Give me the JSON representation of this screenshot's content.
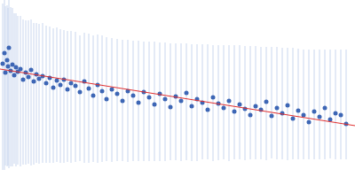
{
  "chart_data": {
    "type": "scatter",
    "xlim": [
      0,
      400
    ],
    "ylim": [
      0,
      200
    ],
    "tick_labels": false,
    "grid": false,
    "series": [
      {
        "type": "scatter",
        "color": "#3d66b5",
        "marker": "circle",
        "error_color": "#c9d6ee",
        "x": [
          3,
          5,
          6,
          8,
          9,
          10,
          12,
          14,
          16,
          18,
          20,
          23,
          26,
          29,
          32,
          35,
          38,
          41,
          44,
          48,
          52,
          56,
          60,
          64,
          68,
          72,
          76,
          80,
          85,
          90,
          95,
          100,
          105,
          110,
          115,
          120,
          126,
          132,
          138,
          144,
          150,
          156,
          162,
          168,
          174,
          180,
          186,
          192,
          198,
          204,
          210,
          216,
          222,
          228,
          234,
          240,
          246,
          252,
          258,
          264,
          270,
          276,
          282,
          288,
          294,
          300,
          306,
          312,
          318,
          324,
          330,
          336,
          342,
          348,
          354,
          360,
          366,
          372,
          378,
          384,
          390
        ],
        "values": [
          128,
          140,
          118,
          132,
          125,
          146,
          120,
          127,
          115,
          124,
          119,
          122,
          110,
          118,
          113,
          121,
          108,
          116,
          111,
          114,
          106,
          112,
          101,
          109,
          104,
          110,
          99,
          106,
          103,
          96,
          108,
          100,
          92,
          104,
          97,
          88,
          99,
          94,
          86,
          97,
          92,
          84,
          96,
          90,
          82,
          94,
          88,
          79,
          91,
          86,
          95,
          80,
          88,
          84,
          76,
          90,
          83,
          78,
          86,
          74,
          82,
          77,
          70,
          80,
          76,
          85,
          69,
          78,
          72,
          81,
          66,
          75,
          70,
          62,
          74,
          68,
          78,
          65,
          72,
          70,
          60
        ],
        "error_plus": [
          68,
          60,
          75,
          62,
          66,
          55,
          72,
          64,
          70,
          61,
          63,
          60,
          68,
          59,
          64,
          57,
          66,
          58,
          62,
          60,
          65,
          58,
          67,
          60,
          63,
          56,
          66,
          59,
          61,
          64,
          55,
          62,
          68,
          57,
          63,
          70,
          58,
          62,
          69,
          58,
          62,
          70,
          57,
          63,
          71,
          58,
          64,
          72,
          60,
          65,
          56,
          70,
          62,
          66,
          74,
          59,
          66,
          71,
          63,
          75,
          67,
          71,
          78,
          68,
          71,
          62,
          78,
          69,
          74,
          65,
          80,
          70,
          74,
          82,
          70,
          76,
          66,
          79,
          72,
          74,
          84
        ],
        "error_minus": [
          120,
          132,
          105,
          120,
          112,
          136,
          108,
          115,
          100,
          112,
          105,
          110,
          96,
          104,
          98,
          108,
          94,
          100,
          96,
          98,
          90,
          96,
          85,
          92,
          88,
          94,
          82,
          90,
          86,
          78,
          92,
          84,
          75,
          88,
          80,
          70,
          82,
          76,
          68,
          80,
          74,
          66,
          78,
          72,
          64,
          76,
          70,
          60,
          72,
          68,
          76,
          62,
          70,
          64,
          56,
          72,
          64,
          58,
          68,
          54,
          62,
          58,
          50,
          60,
          56,
          66,
          48,
          58,
          52,
          62,
          46,
          55,
          50,
          42,
          54,
          48,
          58,
          44,
          52,
          50,
          40
        ]
      },
      {
        "type": "line",
        "color": "#e03030",
        "line_style": "solid",
        "x": [
          0,
          400
        ],
        "values": [
          122,
          58
        ]
      }
    ]
  }
}
